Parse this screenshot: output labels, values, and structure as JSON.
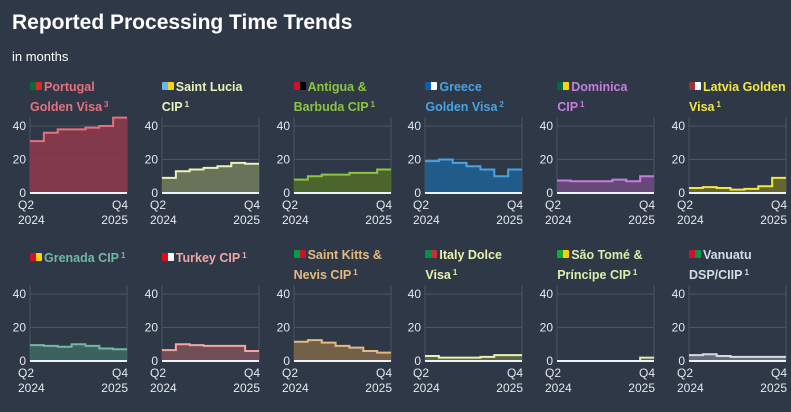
{
  "header": {
    "title": "Reported Processing Time Trends",
    "subtitle": "in months"
  },
  "chart_data": {
    "type": "area",
    "step": true,
    "x": [
      "Q2 2024",
      "Q3 2024",
      "Q4 2024",
      "Q1 2025",
      "Q2 2025",
      "Q3 2025",
      "Q4 2025"
    ],
    "x_tick_labels": [
      [
        "Q2",
        "2024"
      ],
      [
        "Q4",
        "2025"
      ]
    ],
    "yticks": [
      0,
      20,
      40
    ],
    "ylim": [
      0,
      45
    ],
    "grid": true,
    "series": [
      {
        "name": "Portugal Golden Visa",
        "note": "3",
        "color": "#e8707e",
        "fill": "#8c3a4c",
        "flag": [
          "#0a6b3a",
          "#d52b1e"
        ],
        "values": [
          31,
          36,
          38,
          38,
          39,
          40,
          45
        ]
      },
      {
        "name": "Saint Lucia CIP",
        "note": "1",
        "color": "#e8f3b8",
        "fill": "#6f7a5c",
        "flag": [
          "#6cb4ee",
          "#fcd116"
        ],
        "values": [
          9,
          13,
          14,
          15,
          16,
          18,
          17.5
        ]
      },
      {
        "name": "Antigua & Barbuda CIP",
        "note": "1",
        "color": "#8cc63f",
        "fill": "#4f6a2a",
        "flag": [
          "#ce1126",
          "#000000"
        ],
        "values": [
          8,
          10,
          11,
          11,
          12,
          12,
          14
        ]
      },
      {
        "name": "Greece Golden Visa",
        "note": "2",
        "color": "#4aa3e0",
        "fill": "#1f5f90",
        "flag": [
          "#0d5eaf",
          "#ffffff"
        ],
        "values": [
          19,
          20,
          18,
          16,
          14,
          10,
          14
        ]
      },
      {
        "name": "Dominica CIP",
        "note": "1",
        "color": "#c77ddb",
        "fill": "#6e4a80",
        "flag": [
          "#006b3f",
          "#fcd116"
        ],
        "values": [
          7.5,
          7,
          7,
          7,
          8,
          7,
          10
        ]
      },
      {
        "name": "Latvia Golden Visa",
        "note": "1",
        "color": "#f2e640",
        "fill": "#6d6a2a",
        "flag": [
          "#9e3039",
          "#ffffff"
        ],
        "values": [
          3,
          3.5,
          3,
          2,
          2.5,
          4,
          9
        ]
      },
      {
        "name": "Grenada CIP",
        "note": "1",
        "color": "#72b8a2",
        "fill": "#3e6660",
        "flag": [
          "#ce1126",
          "#fcd116"
        ],
        "values": [
          9.5,
          9,
          8.5,
          10,
          9,
          7.5,
          7
        ]
      },
      {
        "name": "Turkey CIP",
        "note": "1",
        "color": "#f3a5a5",
        "fill": "#7a5058",
        "flag": [
          "#e30a17",
          "#ffffff"
        ],
        "values": [
          6.5,
          10,
          9.5,
          9,
          9,
          9,
          6
        ]
      },
      {
        "name": "Saint Kitts & Nevis CIP",
        "note": "1",
        "color": "#e2bb80",
        "fill": "#7a6548",
        "flag": [
          "#009e49",
          "#ce1126"
        ],
        "values": [
          11.5,
          12.5,
          11,
          9,
          8,
          6,
          5
        ]
      },
      {
        "name": "Italy Dolce Visa",
        "note": "1",
        "color": "#e8f2ac",
        "fill": "#636b4a",
        "flag": [
          "#009246",
          "#ce2b37"
        ],
        "values": [
          3,
          2,
          2,
          2,
          2.5,
          3.5,
          3.5
        ]
      },
      {
        "name": "São Tomé & Príncipe CIP",
        "note": "1",
        "color": "#dcecaa",
        "fill": "#5a6450",
        "flag": [
          "#12ad2b",
          "#ffce00"
        ],
        "values": [
          0,
          0,
          0,
          0,
          0,
          0,
          2
        ]
      },
      {
        "name": "Vanuatu DSP/CIIP",
        "note": "1",
        "color": "#d4dbe3",
        "fill": "#6a737e",
        "flag": [
          "#d21034",
          "#009543"
        ],
        "values": [
          3.5,
          4,
          3,
          2.5,
          2.5,
          2.5,
          2.5
        ]
      }
    ]
  }
}
